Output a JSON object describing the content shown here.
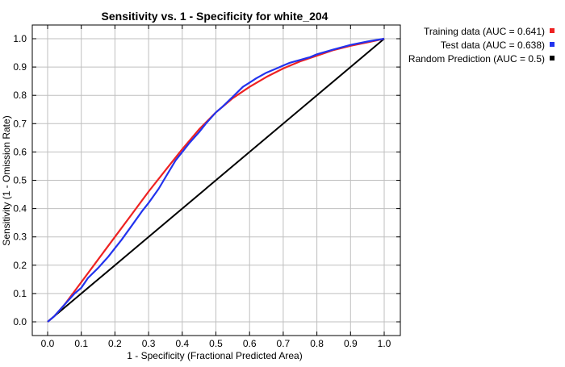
{
  "chart_data": {
    "type": "line",
    "title": "Sensitivity vs. 1 - Specificity for white_204",
    "xlabel": "1 - Specificity  (Fractional Predicted Area)",
    "ylabel": "Sensitivity  (1 - Omission Rate)",
    "xlim": [
      0,
      1
    ],
    "ylim": [
      0,
      1
    ],
    "xticks": [
      0.0,
      0.1,
      0.2,
      0.3,
      0.4,
      0.5,
      0.6,
      0.7,
      0.8,
      0.9,
      1.0
    ],
    "yticks": [
      0.0,
      0.1,
      0.2,
      0.3,
      0.4,
      0.5,
      0.6,
      0.7,
      0.8,
      0.9,
      1.0
    ],
    "xtick_labels": [
      "0.0",
      "0.1",
      "0.2",
      "0.3",
      "0.4",
      "0.5",
      "0.6",
      "0.7",
      "0.8",
      "0.9",
      "1.0"
    ],
    "ytick_labels": [
      "0.0",
      "0.1",
      "0.2",
      "0.3",
      "0.4",
      "0.5",
      "0.6",
      "0.7",
      "0.8",
      "0.9",
      "1.0"
    ],
    "grid": true,
    "legend_position": "outside-top-right",
    "series": [
      {
        "name": "Training data (AUC = 0.641)",
        "color": "#ee2222",
        "x": [
          0.0,
          0.02,
          0.05,
          0.1,
          0.15,
          0.2,
          0.25,
          0.3,
          0.35,
          0.4,
          0.45,
          0.5,
          0.55,
          0.6,
          0.65,
          0.7,
          0.75,
          0.8,
          0.85,
          0.9,
          0.95,
          1.0
        ],
        "y": [
          0.0,
          0.02,
          0.06,
          0.14,
          0.22,
          0.3,
          0.38,
          0.46,
          0.535,
          0.61,
          0.68,
          0.74,
          0.79,
          0.83,
          0.865,
          0.895,
          0.92,
          0.94,
          0.96,
          0.975,
          0.987,
          1.0
        ]
      },
      {
        "name": "Test data (AUC = 0.638)",
        "color": "#2233ee",
        "x": [
          0.0,
          0.02,
          0.05,
          0.08,
          0.1,
          0.12,
          0.15,
          0.18,
          0.2,
          0.22,
          0.25,
          0.28,
          0.3,
          0.33,
          0.35,
          0.38,
          0.4,
          0.42,
          0.45,
          0.47,
          0.5,
          0.52,
          0.55,
          0.58,
          0.6,
          0.62,
          0.65,
          0.68,
          0.7,
          0.72,
          0.75,
          0.78,
          0.8,
          0.85,
          0.9,
          0.95,
          1.0
        ],
        "y": [
          0.0,
          0.02,
          0.06,
          0.1,
          0.12,
          0.155,
          0.19,
          0.23,
          0.26,
          0.29,
          0.34,
          0.39,
          0.42,
          0.47,
          0.51,
          0.57,
          0.6,
          0.63,
          0.67,
          0.7,
          0.74,
          0.76,
          0.795,
          0.83,
          0.845,
          0.86,
          0.88,
          0.895,
          0.905,
          0.915,
          0.925,
          0.935,
          0.945,
          0.962,
          0.978,
          0.99,
          1.0
        ]
      },
      {
        "name": "Random Prediction (AUC = 0.5)",
        "color": "#000000",
        "x": [
          0.0,
          1.0
        ],
        "y": [
          0.0,
          1.0
        ]
      }
    ]
  }
}
